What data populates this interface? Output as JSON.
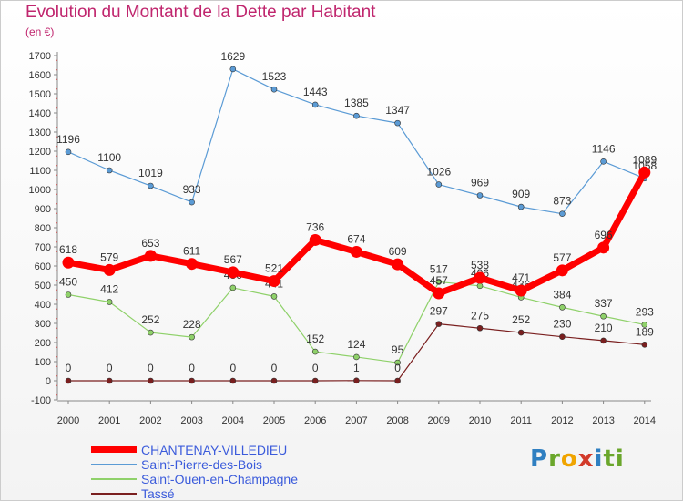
{
  "title": "Evolution du Montant de la Dette par Habitant",
  "unit": "(en €)",
  "brand": "Proxiti",
  "chart_data": {
    "type": "line",
    "x": [
      "2000",
      "2001",
      "2002",
      "2003",
      "2004",
      "2005",
      "2006",
      "2007",
      "2008",
      "2009",
      "2010",
      "2011",
      "2012",
      "2013",
      "2014"
    ],
    "ylim": [
      -100,
      1700
    ],
    "yticks": [
      -100,
      0,
      100,
      200,
      300,
      400,
      500,
      600,
      700,
      800,
      900,
      1000,
      1100,
      1200,
      1300,
      1400,
      1500,
      1600,
      1700
    ],
    "grid": false,
    "legend_position": "bottom-left",
    "series": [
      {
        "name": "Saint-Pierre-des-Bois",
        "color": "#5b9bd5",
        "width": 1.2,
        "values": [
          1196,
          1100,
          1019,
          933,
          1629,
          1523,
          1443,
          1385,
          1347,
          1026,
          969,
          909,
          873,
          1146,
          1058
        ],
        "labels": [
          "1196",
          "1100",
          "1019",
          "933",
          "1629",
          "1523",
          "1443",
          "1385",
          "1347",
          "1026",
          "969",
          "909",
          "873",
          "1146",
          "1058"
        ]
      },
      {
        "name": "Saint-Ouen-en-Champagne",
        "color": "#8fd16a",
        "width": 1.2,
        "values": [
          450,
          412,
          252,
          228,
          486,
          441,
          152,
          124,
          95,
          517,
          496,
          436,
          384,
          337,
          293
        ],
        "labels": [
          "450",
          "412",
          "252",
          "228",
          "486",
          "441",
          "152",
          "124",
          "95",
          "517",
          "496",
          "436",
          "384",
          "337",
          "293"
        ]
      },
      {
        "name": "Tassé",
        "color": "#7a1f1f",
        "width": 1.2,
        "values": [
          0,
          0,
          0,
          0,
          0,
          0,
          0,
          1,
          0,
          297,
          275,
          252,
          230,
          210,
          189
        ],
        "labels": [
          "0",
          "0",
          "0",
          "0",
          "0",
          "0",
          "0",
          "1",
          "0",
          "297",
          "275",
          "252",
          "230",
          "210",
          "189"
        ]
      },
      {
        "name": "CHANTENAY-VILLEDIEU",
        "color": "#ff0000",
        "width": 7,
        "values": [
          618,
          579,
          653,
          611,
          567,
          521,
          736,
          674,
          609,
          457,
          538,
          471,
          577,
          696,
          1089
        ],
        "labels": [
          "618",
          "579",
          "653",
          "611",
          "567",
          "521",
          "736",
          "674",
          "609",
          "457",
          "538",
          "471",
          "577",
          "696",
          "1089"
        ]
      }
    ]
  },
  "legend": [
    {
      "label": "CHANTENAY-VILLEDIEU",
      "color": "#ff0000",
      "text_color": "#3b5bdb",
      "thick": true
    },
    {
      "label": "Saint-Pierre-des-Bois",
      "color": "#5b9bd5",
      "text_color": "#3b5bdb",
      "thick": false
    },
    {
      "label": "Saint-Ouen-en-Champagne",
      "color": "#8fd16a",
      "text_color": "#3b5bdb",
      "thick": false
    },
    {
      "label": "Tassé",
      "color": "#7a1f1f",
      "text_color": "#3b5bdb",
      "thick": false
    }
  ]
}
